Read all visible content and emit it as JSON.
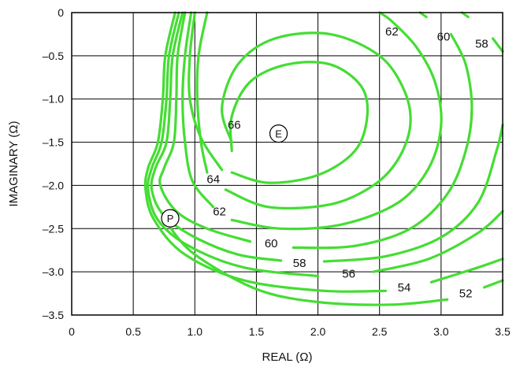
{
  "chart_data": {
    "type": "contour",
    "xlabel": "REAL (Ω)",
    "ylabel": "IMAGINARY (Ω)",
    "xlim": [
      0,
      3.5
    ],
    "ylim": [
      -3.5,
      0
    ],
    "grid": true,
    "x_ticks": [
      {
        "value": 0,
        "label": "0"
      },
      {
        "value": 0.5,
        "label": "0.5"
      },
      {
        "value": 1.0,
        "label": "1.0"
      },
      {
        "value": 1.5,
        "label": "1.5"
      },
      {
        "value": 2.0,
        "label": "2.0"
      },
      {
        "value": 2.5,
        "label": "2.5"
      },
      {
        "value": 3.0,
        "label": "3.0"
      },
      {
        "value": 3.5,
        "label": "3.5"
      }
    ],
    "y_ticks": [
      {
        "value": 0,
        "label": "0"
      },
      {
        "value": -0.5,
        "label": "–0.5"
      },
      {
        "value": -1.0,
        "label": "–1.0"
      },
      {
        "value": -1.5,
        "label": "–1.5"
      },
      {
        "value": -2.0,
        "label": "–2.0"
      },
      {
        "value": -2.5,
        "label": "–2.5"
      },
      {
        "value": -3.0,
        "label": "–3.0"
      },
      {
        "value": -3.5,
        "label": "–3.5"
      }
    ],
    "line_color": "#44dd33",
    "contours": [
      {
        "level": "66",
        "points": [
          [
            1.0,
            0
          ],
          [
            0.96,
            -0.5
          ],
          [
            0.96,
            -1.0
          ],
          [
            1.05,
            -1.45
          ],
          [
            1.22,
            -1.82
          ]
        ],
        "label": {
          "text": "66",
          "x": 1.32,
          "y": -1.3
        }
      },
      {
        "level": "66",
        "points": [
          [
            1.3,
            -1.6
          ],
          [
            1.3,
            -1.2
          ],
          [
            1.45,
            -0.8
          ],
          [
            1.75,
            -0.6
          ],
          [
            2.1,
            -0.6
          ],
          [
            2.35,
            -0.85
          ],
          [
            2.4,
            -1.2
          ],
          [
            2.3,
            -1.6
          ],
          [
            2.0,
            -1.88
          ],
          [
            1.6,
            -1.97
          ],
          [
            1.3,
            -1.85
          ]
        ]
      },
      {
        "level": "64",
        "points": [
          [
            1.1,
            0
          ],
          [
            1.03,
            -0.5
          ],
          [
            1.02,
            -1.0
          ],
          [
            1.05,
            -1.5
          ],
          [
            1.1,
            -1.85
          ]
        ],
        "label": {
          "text": "64",
          "x": 1.15,
          "y": -1.93
        }
      },
      {
        "level": "64",
        "points": [
          [
            1.25,
            -2.05
          ],
          [
            1.6,
            -2.25
          ],
          [
            2.1,
            -2.22
          ],
          [
            2.45,
            -2.0
          ],
          [
            2.65,
            -1.7
          ],
          [
            2.75,
            -1.3
          ],
          [
            2.7,
            -0.9
          ],
          [
            2.5,
            -0.5
          ],
          [
            2.1,
            -0.25
          ],
          [
            1.65,
            -0.3
          ],
          [
            1.35,
            -0.6
          ],
          [
            1.22,
            -1.1
          ],
          [
            1.3,
            -1.5
          ]
        ]
      },
      {
        "level": "62",
        "points": [
          [
            0.97,
            0
          ],
          [
            0.92,
            -0.5
          ],
          [
            0.9,
            -1.0
          ],
          [
            0.92,
            -1.5
          ],
          [
            0.98,
            -1.95
          ],
          [
            1.15,
            -2.25
          ]
        ],
        "label": {
          "text": "62",
          "x": 1.2,
          "y": -2.3
        }
      },
      {
        "level": "62",
        "points": [
          [
            1.3,
            -2.4
          ],
          [
            1.7,
            -2.5
          ],
          [
            2.2,
            -2.45
          ],
          [
            2.65,
            -2.2
          ],
          [
            2.9,
            -1.8
          ],
          [
            3.0,
            -1.3
          ],
          [
            2.95,
            -0.8
          ],
          [
            2.8,
            -0.4
          ],
          [
            2.6,
            -0.1
          ],
          [
            2.5,
            0
          ]
        ],
        "label": {
          "text": "62",
          "x": 2.6,
          "y": -0.22
        }
      },
      {
        "level": "60",
        "points": [
          [
            0.92,
            0
          ],
          [
            0.86,
            -0.5
          ],
          [
            0.85,
            -1.0
          ],
          [
            0.83,
            -1.5
          ],
          [
            0.75,
            -1.8
          ],
          [
            0.72,
            -2.0
          ],
          [
            0.85,
            -2.3
          ],
          [
            1.1,
            -2.5
          ],
          [
            1.45,
            -2.65
          ]
        ],
        "label": {
          "text": "60",
          "x": 1.62,
          "y": -2.67
        }
      },
      {
        "level": "60",
        "points": [
          [
            1.8,
            -2.72
          ],
          [
            2.3,
            -2.7
          ],
          [
            2.75,
            -2.5
          ],
          [
            3.05,
            -2.1
          ],
          [
            3.2,
            -1.6
          ],
          [
            3.25,
            -1.1
          ],
          [
            3.2,
            -0.6
          ],
          [
            3.08,
            -0.25
          ]
        ],
        "label": {
          "text": "60",
          "x": 3.02,
          "y": -0.28
        }
      },
      {
        "level": "60",
        "points": [
          [
            2.88,
            -0.05
          ],
          [
            2.83,
            0
          ]
        ]
      },
      {
        "level": "58",
        "points": [
          [
            0.9,
            0
          ],
          [
            0.82,
            -0.5
          ],
          [
            0.8,
            -1.0
          ],
          [
            0.77,
            -1.5
          ],
          [
            0.68,
            -1.8
          ],
          [
            0.65,
            -2.05
          ],
          [
            0.75,
            -2.35
          ],
          [
            1.0,
            -2.6
          ],
          [
            1.35,
            -2.8
          ],
          [
            1.7,
            -2.87
          ]
        ],
        "label": {
          "text": "58",
          "x": 1.85,
          "y": -2.9
        }
      },
      {
        "level": "58",
        "points": [
          [
            2.05,
            -2.88
          ],
          [
            2.55,
            -2.82
          ],
          [
            3.0,
            -2.6
          ],
          [
            3.3,
            -2.2
          ],
          [
            3.45,
            -1.6
          ],
          [
            3.5,
            -1.3
          ]
        ]
      },
      {
        "level": "58",
        "points": [
          [
            3.5,
            -0.45
          ],
          [
            3.42,
            -0.3
          ]
        ],
        "label": {
          "text": "58",
          "x": 3.33,
          "y": -0.36
        }
      },
      {
        "level": "58",
        "points": [
          [
            3.22,
            -0.05
          ],
          [
            3.17,
            0
          ]
        ]
      },
      {
        "level": "56",
        "points": [
          [
            0.87,
            0
          ],
          [
            0.79,
            -0.5
          ],
          [
            0.77,
            -1.0
          ],
          [
            0.73,
            -1.5
          ],
          [
            0.65,
            -1.8
          ],
          [
            0.62,
            -2.05
          ],
          [
            0.7,
            -2.4
          ],
          [
            0.95,
            -2.7
          ],
          [
            1.4,
            -2.95
          ],
          [
            2.0,
            -3.05
          ]
        ],
        "label": {
          "text": "56",
          "x": 2.25,
          "y": -3.02
        }
      },
      {
        "level": "56",
        "points": [
          [
            2.45,
            -3.0
          ],
          [
            2.9,
            -2.85
          ],
          [
            3.3,
            -2.55
          ],
          [
            3.5,
            -2.3
          ]
        ]
      },
      {
        "level": "54",
        "points": [
          [
            0.84,
            0
          ],
          [
            0.76,
            -0.5
          ],
          [
            0.74,
            -1.0
          ],
          [
            0.7,
            -1.5
          ],
          [
            0.62,
            -1.8
          ],
          [
            0.6,
            -2.05
          ],
          [
            0.67,
            -2.4
          ],
          [
            0.92,
            -2.8
          ],
          [
            1.4,
            -3.1
          ],
          [
            2.05,
            -3.22
          ],
          [
            2.55,
            -3.22
          ]
        ],
        "label": {
          "text": "54",
          "x": 2.7,
          "y": -3.18
        }
      },
      {
        "level": "54",
        "points": [
          [
            2.92,
            -3.12
          ],
          [
            3.3,
            -2.95
          ],
          [
            3.5,
            -2.85
          ]
        ]
      },
      {
        "level": "52",
        "points": [
          [
            0.78,
            -2.45
          ],
          [
            1.0,
            -2.8
          ],
          [
            1.5,
            -3.2
          ],
          [
            2.0,
            -3.35
          ],
          [
            2.6,
            -3.38
          ],
          [
            3.05,
            -3.32
          ]
        ],
        "label": {
          "text": "52",
          "x": 3.2,
          "y": -3.25
        }
      },
      {
        "level": "52",
        "points": [
          [
            3.35,
            -3.18
          ],
          [
            3.5,
            -3.1
          ]
        ]
      }
    ],
    "annotations": [
      {
        "text": "E",
        "x": 1.68,
        "y": -1.4
      },
      {
        "text": "P",
        "x": 0.8,
        "y": -2.38
      }
    ]
  }
}
